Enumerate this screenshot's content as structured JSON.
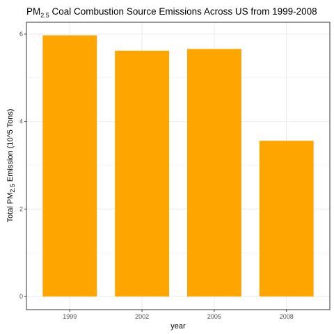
{
  "chart_data": {
    "type": "bar",
    "title": {
      "prefix": "PM",
      "subscript": "2.5",
      "suffix": " Coal Combustion Source Emissions Across US from 1999-2008"
    },
    "xlabel": "year",
    "ylabel": {
      "prefix": "Total PM",
      "subscript": "2.5",
      "suffix": " Emission (10^5 Tons)"
    },
    "categories": [
      "1999",
      "2002",
      "2005",
      "2008"
    ],
    "values": [
      5.97,
      5.62,
      5.66,
      3.56
    ],
    "yticks": [
      0,
      2,
      4,
      6
    ],
    "ylim": [
      -0.3,
      6.27
    ],
    "grid": true,
    "bar_color": "#FFA500"
  }
}
